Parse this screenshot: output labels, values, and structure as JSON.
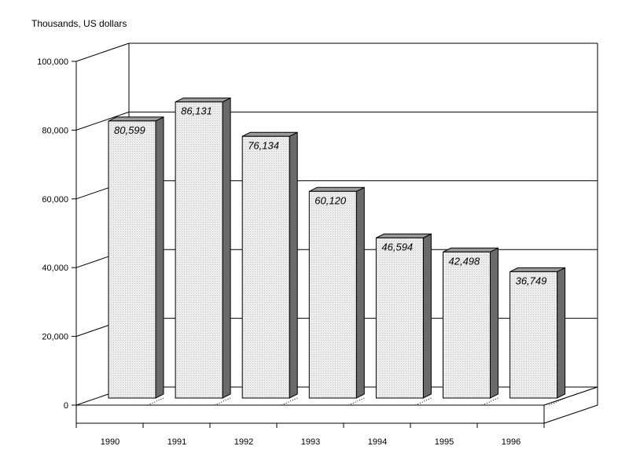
{
  "chart_data": {
    "type": "bar",
    "unit_label": "Thousands, US dollars",
    "categories": [
      "1990",
      "1991",
      "1992",
      "1993",
      "1994",
      "1995",
      "1996"
    ],
    "values": [
      80599,
      86131,
      76134,
      60120,
      46594,
      42498,
      36749
    ],
    "value_labels": [
      "80,599",
      "86,131",
      "76,134",
      "60,120",
      "46,594",
      "42,498",
      "36,749"
    ],
    "y_ticks": [
      "0",
      "20,000",
      "40,000",
      "60,000",
      "80,000",
      "100,000"
    ],
    "ylim": [
      0,
      100000
    ],
    "grid": true,
    "three_d": true,
    "colors": {
      "bar_front": "#ececec",
      "bar_side": "#6a6a6a",
      "bar_top": "#9a9a9a",
      "grid": "#000000"
    }
  }
}
